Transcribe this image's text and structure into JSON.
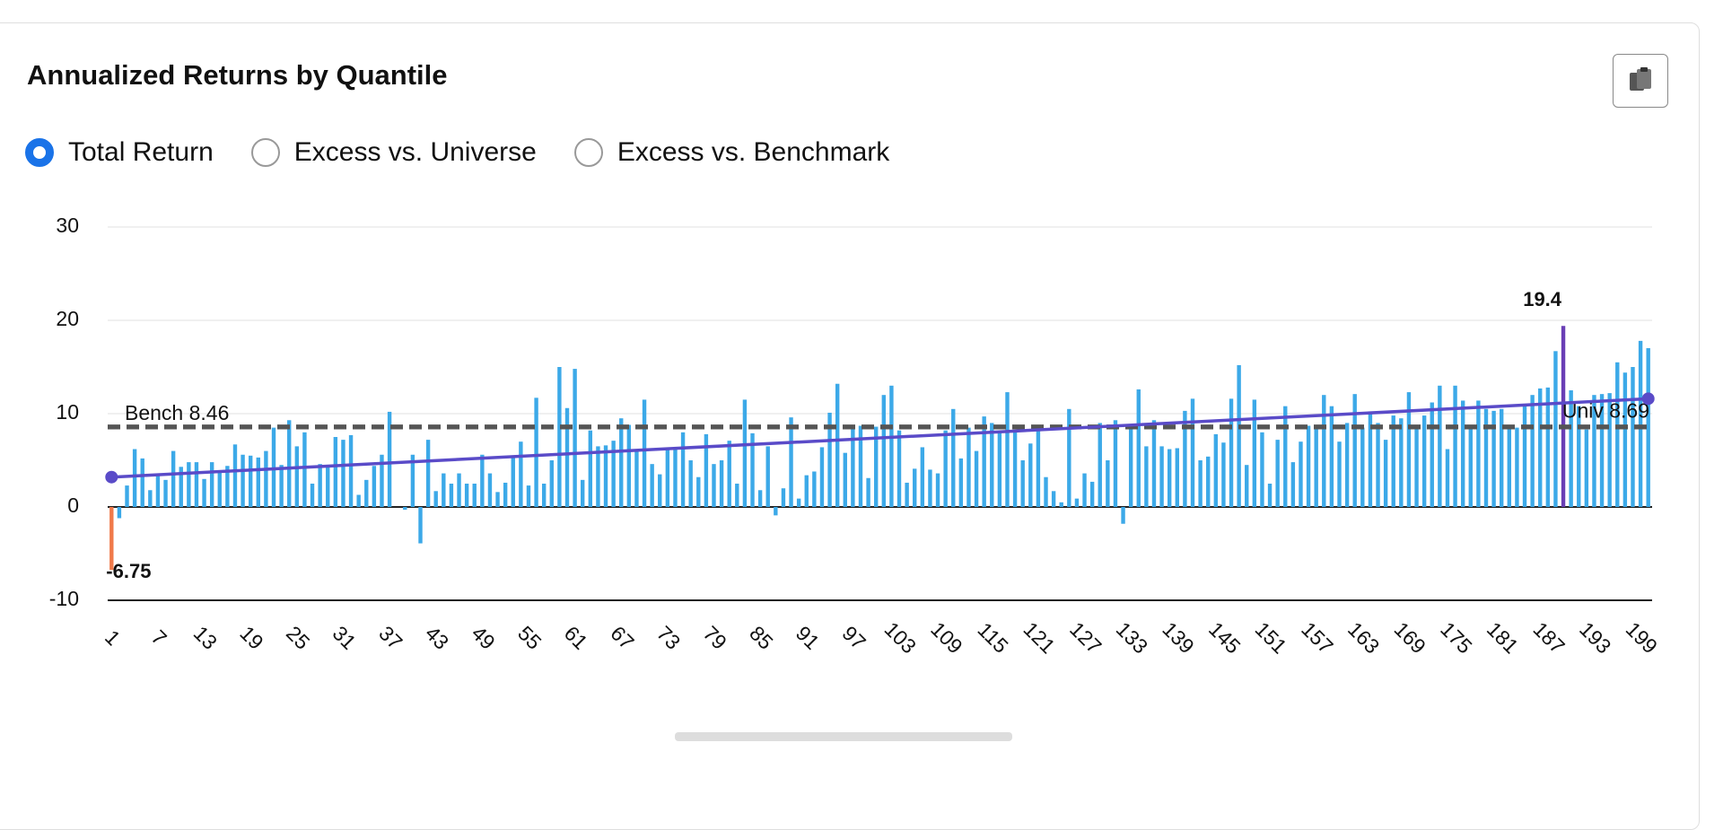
{
  "header": {
    "title": "Annualized Returns by Quantile"
  },
  "options": [
    {
      "label": "Total Return",
      "checked": true
    },
    {
      "label": "Excess vs. Universe",
      "checked": false
    },
    {
      "label": "Excess vs. Benchmark",
      "checked": false
    }
  ],
  "chart_data": {
    "type": "bar",
    "categories": [
      1,
      null,
      null,
      null,
      null,
      null,
      7,
      null,
      null,
      null,
      null,
      null,
      13,
      null,
      null,
      null,
      null,
      null,
      19,
      null,
      null,
      null,
      null,
      null,
      25,
      null,
      null,
      null,
      null,
      null,
      31,
      null,
      null,
      null,
      null,
      null,
      37,
      null,
      null,
      null,
      null,
      null,
      43,
      null,
      null,
      null,
      null,
      null,
      49,
      null,
      null,
      null,
      null,
      null,
      55,
      null,
      null,
      null,
      null,
      null,
      61,
      null,
      null,
      null,
      null,
      null,
      67,
      null,
      null,
      null,
      null,
      null,
      73,
      null,
      null,
      null,
      null,
      null,
      79,
      null,
      null,
      null,
      null,
      null,
      85,
      null,
      null,
      null,
      null,
      null,
      91,
      null,
      null,
      null,
      null,
      null,
      97,
      null,
      null,
      null,
      null,
      null,
      103,
      null,
      null,
      null,
      null,
      null,
      109,
      null,
      null,
      null,
      null,
      null,
      115,
      null,
      null,
      null,
      null,
      null,
      121,
      null,
      null,
      null,
      null,
      null,
      127,
      null,
      null,
      null,
      null,
      null,
      133,
      null,
      null,
      null,
      null,
      null,
      139,
      null,
      null,
      null,
      null,
      null,
      145,
      null,
      null,
      null,
      null,
      null,
      151,
      null,
      null,
      null,
      null,
      null,
      157,
      null,
      null,
      null,
      null,
      null,
      163,
      null,
      null,
      null,
      null,
      null,
      169,
      null,
      null,
      null,
      null,
      null,
      175,
      null,
      null,
      null,
      null,
      null,
      181,
      null,
      null,
      null,
      null,
      null,
      187,
      null,
      null,
      null,
      null,
      null,
      193,
      null,
      null,
      null,
      null,
      null,
      199,
      null
    ],
    "values": [
      -6.75,
      -1.2,
      2.3,
      6.2,
      5.2,
      1.8,
      3.5,
      2.9,
      6.0,
      4.3,
      4.8,
      4.8,
      3.0,
      4.8,
      3.7,
      4.4,
      6.7,
      5.6,
      5.5,
      5.3,
      6.0,
      8.5,
      4.5,
      9.3,
      6.5,
      8.0,
      2.5,
      4.6,
      4.4,
      7.5,
      7.2,
      7.7,
      1.3,
      2.9,
      4.4,
      5.6,
      10.2,
      0,
      -0.3,
      5.6,
      -3.9,
      7.2,
      1.7,
      3.6,
      2.5,
      3.6,
      2.5,
      2.5,
      5.6,
      3.6,
      1.6,
      2.6,
      5.4,
      7.0,
      2.3,
      11.7,
      2.5,
      5.0,
      15.0,
      10.6,
      14.8,
      2.9,
      8.2,
      6.5,
      6.6,
      7.1,
      9.5,
      8.8,
      6.2,
      11.5,
      4.6,
      3.5,
      6.3,
      6.3,
      8.0,
      5.0,
      3.2,
      7.8,
      4.6,
      5.0,
      7.1,
      2.5,
      11.5,
      7.9,
      1.8,
      6.5,
      -0.9,
      2.0,
      9.6,
      0.9,
      3.4,
      3.8,
      6.4,
      10.1,
      13.2,
      5.8,
      8.6,
      8.7,
      3.1,
      8.6,
      12.0,
      13.0,
      8.2,
      2.6,
      4.1,
      6.4,
      4.0,
      3.6,
      8.2,
      10.5,
      5.2,
      8.5,
      6.0,
      9.7,
      9.0,
      8.0,
      12.3,
      8.2,
      5.0,
      6.8,
      8.5,
      3.2,
      1.7,
      0.5,
      10.5,
      0.9,
      3.6,
      2.7,
      9.0,
      5.0,
      9.3,
      -1.8,
      8.6,
      12.6,
      6.5,
      9.3,
      6.5,
      6.2,
      6.3,
      10.3,
      11.6,
      5.0,
      5.4,
      7.8,
      6.9,
      11.6,
      15.2,
      4.5,
      11.5,
      8.0,
      2.5,
      7.2,
      10.8,
      4.8,
      7.0,
      8.7,
      8.6,
      12.0,
      10.8,
      7.0,
      9.0,
      12.1,
      8.5,
      10.0,
      9.0,
      7.2,
      9.8,
      9.5,
      12.3,
      8.5,
      9.8,
      11.2,
      13.0,
      6.2,
      13.0,
      11.4,
      8.5,
      11.4,
      10.5,
      10.3,
      10.5,
      8.4,
      8.5,
      10.8,
      12.0,
      12.7,
      12.8,
      16.7,
      19.4,
      12.5,
      10.8,
      8.3,
      12.0,
      12.1,
      12.2,
      15.5,
      14.4,
      15.0,
      17.8,
      17.02
    ],
    "color": "#3ca9e8",
    "min_color": "#f07a4a",
    "max_color": "#6a3fb5",
    "ylim": [
      -10,
      30
    ],
    "yticks": [
      -10,
      0,
      10,
      20,
      30
    ],
    "grid": true,
    "reference_lines": [
      {
        "label": "Bench 8.46",
        "value": 8.46,
        "color": "#555555"
      },
      {
        "label": "Univ 8.69",
        "value": 8.69,
        "color": "#555555"
      }
    ],
    "trend": [
      3.2,
      11.6
    ],
    "trend_color": "#5a4bc8"
  }
}
